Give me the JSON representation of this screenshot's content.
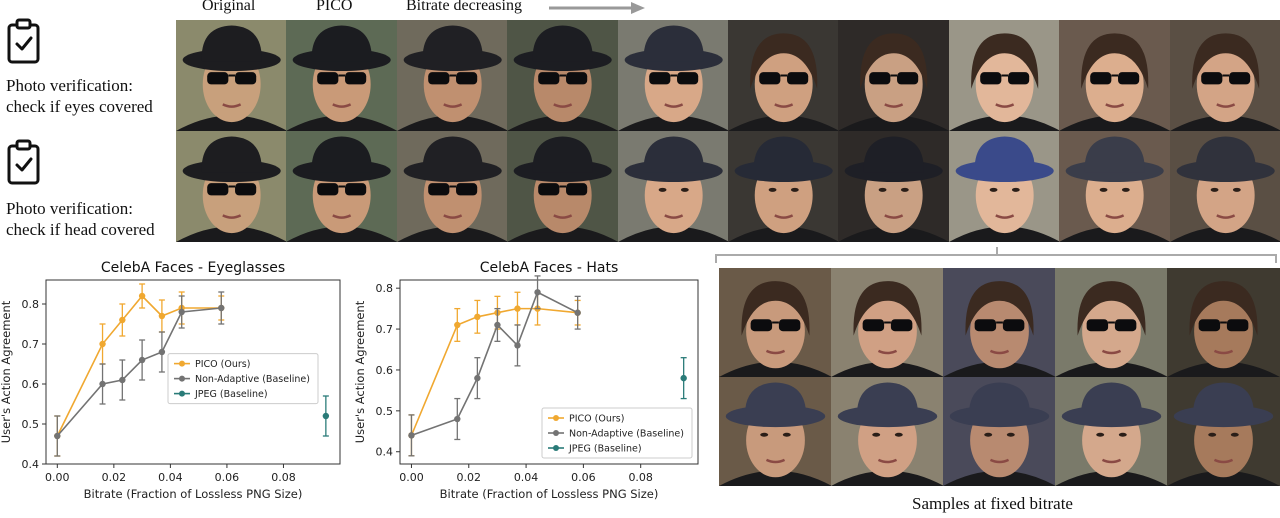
{
  "header": {
    "original_label": "Original",
    "pico_label": "PICO",
    "bitrate_label": "Bitrate decreasing"
  },
  "tasks": [
    {
      "line1": "Photo verification:",
      "line2": "check if eyes covered",
      "icon": "clipboard-check-icon"
    },
    {
      "line1": "Photo verification:",
      "line2": "check if head covered",
      "icon": "clipboard-check-icon"
    }
  ],
  "samples_caption": "Samples at fixed bitrate",
  "palette": {
    "pico": "#f0a830",
    "non_adaptive": "#737373",
    "jpeg": "#2a7b78",
    "bg_tones": [
      "#8b8a6c",
      "#5d6a55",
      "#6f6a5c",
      "#4f5546",
      "#7a7a70",
      "#3a3733",
      "#2e2a28",
      "#9a9688",
      "#6a5a4e",
      "#5a4f44"
    ],
    "skin_tones": [
      "#c8a07c",
      "#c99a78",
      "#c09070",
      "#b8896a",
      "#d8a888",
      "#cfa080",
      "#c9a083",
      "#e2b79a",
      "#dcae8e",
      "#d3a486"
    ],
    "hat_tones": [
      "#1d1d20",
      "#1b1c20",
      "#202024",
      "#1c1d22",
      "#2b2e3a",
      "#262a36",
      "#1e1f26",
      "#3a4a8a",
      "#3a3d4a",
      "#30323c"
    ]
  },
  "chart_data": [
    {
      "type": "line",
      "title": "CelebA Faces - Eyeglasses",
      "xlabel": "Bitrate (Fraction of Lossless PNG Size)",
      "ylabel": "User's Action Agreement",
      "xlim": [
        -0.004,
        0.1
      ],
      "ylim": [
        0.4,
        0.86
      ],
      "xticks": [
        0.0,
        0.02,
        0.04,
        0.06,
        0.08
      ],
      "xtick_labels": [
        "0.00",
        "0.02",
        "0.04",
        "0.06",
        "0.08"
      ],
      "yticks": [
        0.4,
        0.5,
        0.6,
        0.7,
        0.8
      ],
      "ytick_labels": [
        "0.4",
        "0.5",
        "0.6",
        "0.7",
        "0.8"
      ],
      "legend_position": "center-right",
      "series": [
        {
          "name": "PICO (Ours)",
          "color_key": "pico",
          "x": [
            0.0,
            0.016,
            0.023,
            0.03,
            0.037,
            0.044,
            0.058
          ],
          "y": [
            0.47,
            0.7,
            0.76,
            0.82,
            0.77,
            0.79,
            0.79
          ],
          "err": [
            0.05,
            0.05,
            0.04,
            0.03,
            0.04,
            0.04,
            0.03
          ]
        },
        {
          "name": "Non-Adaptive (Baseline)",
          "color_key": "non_adaptive",
          "x": [
            0.0,
            0.016,
            0.023,
            0.03,
            0.037,
            0.044,
            0.058
          ],
          "y": [
            0.47,
            0.6,
            0.61,
            0.66,
            0.68,
            0.78,
            0.79
          ],
          "err": [
            0.05,
            0.05,
            0.05,
            0.05,
            0.05,
            0.04,
            0.04
          ]
        },
        {
          "name": "JPEG (Baseline)",
          "color_key": "jpeg",
          "x": [
            0.095
          ],
          "y": [
            0.52
          ],
          "err": [
            0.05
          ]
        }
      ]
    },
    {
      "type": "line",
      "title": "CelebA Faces - Hats",
      "xlabel": "Bitrate (Fraction of Lossless PNG Size)",
      "ylabel": "User's Action Agreement",
      "xlim": [
        -0.004,
        0.1
      ],
      "ylim": [
        0.37,
        0.82
      ],
      "xticks": [
        0.0,
        0.02,
        0.04,
        0.06,
        0.08
      ],
      "xtick_labels": [
        "0.00",
        "0.02",
        "0.04",
        "0.06",
        "0.08"
      ],
      "yticks": [
        0.4,
        0.5,
        0.6,
        0.7,
        0.8
      ],
      "ytick_labels": [
        "0.4",
        "0.5",
        "0.6",
        "0.7",
        "0.8"
      ],
      "legend_position": "bottom-right",
      "series": [
        {
          "name": "PICO (Ours)",
          "color_key": "pico",
          "x": [
            0.0,
            0.016,
            0.023,
            0.03,
            0.037,
            0.044,
            0.058
          ],
          "y": [
            0.44,
            0.71,
            0.73,
            0.74,
            0.75,
            0.75,
            0.74
          ],
          "err": [
            0.05,
            0.04,
            0.04,
            0.04,
            0.04,
            0.04,
            0.03
          ]
        },
        {
          "name": "Non-Adaptive (Baseline)",
          "color_key": "non_adaptive",
          "x": [
            0.0,
            0.016,
            0.023,
            0.03,
            0.037,
            0.044,
            0.058
          ],
          "y": [
            0.44,
            0.48,
            0.58,
            0.71,
            0.66,
            0.79,
            0.74
          ],
          "err": [
            0.05,
            0.05,
            0.05,
            0.04,
            0.05,
            0.04,
            0.04
          ]
        },
        {
          "name": "JPEG (Baseline)",
          "color_key": "jpeg",
          "x": [
            0.095
          ],
          "y": [
            0.58
          ],
          "err": [
            0.05
          ]
        }
      ]
    }
  ]
}
